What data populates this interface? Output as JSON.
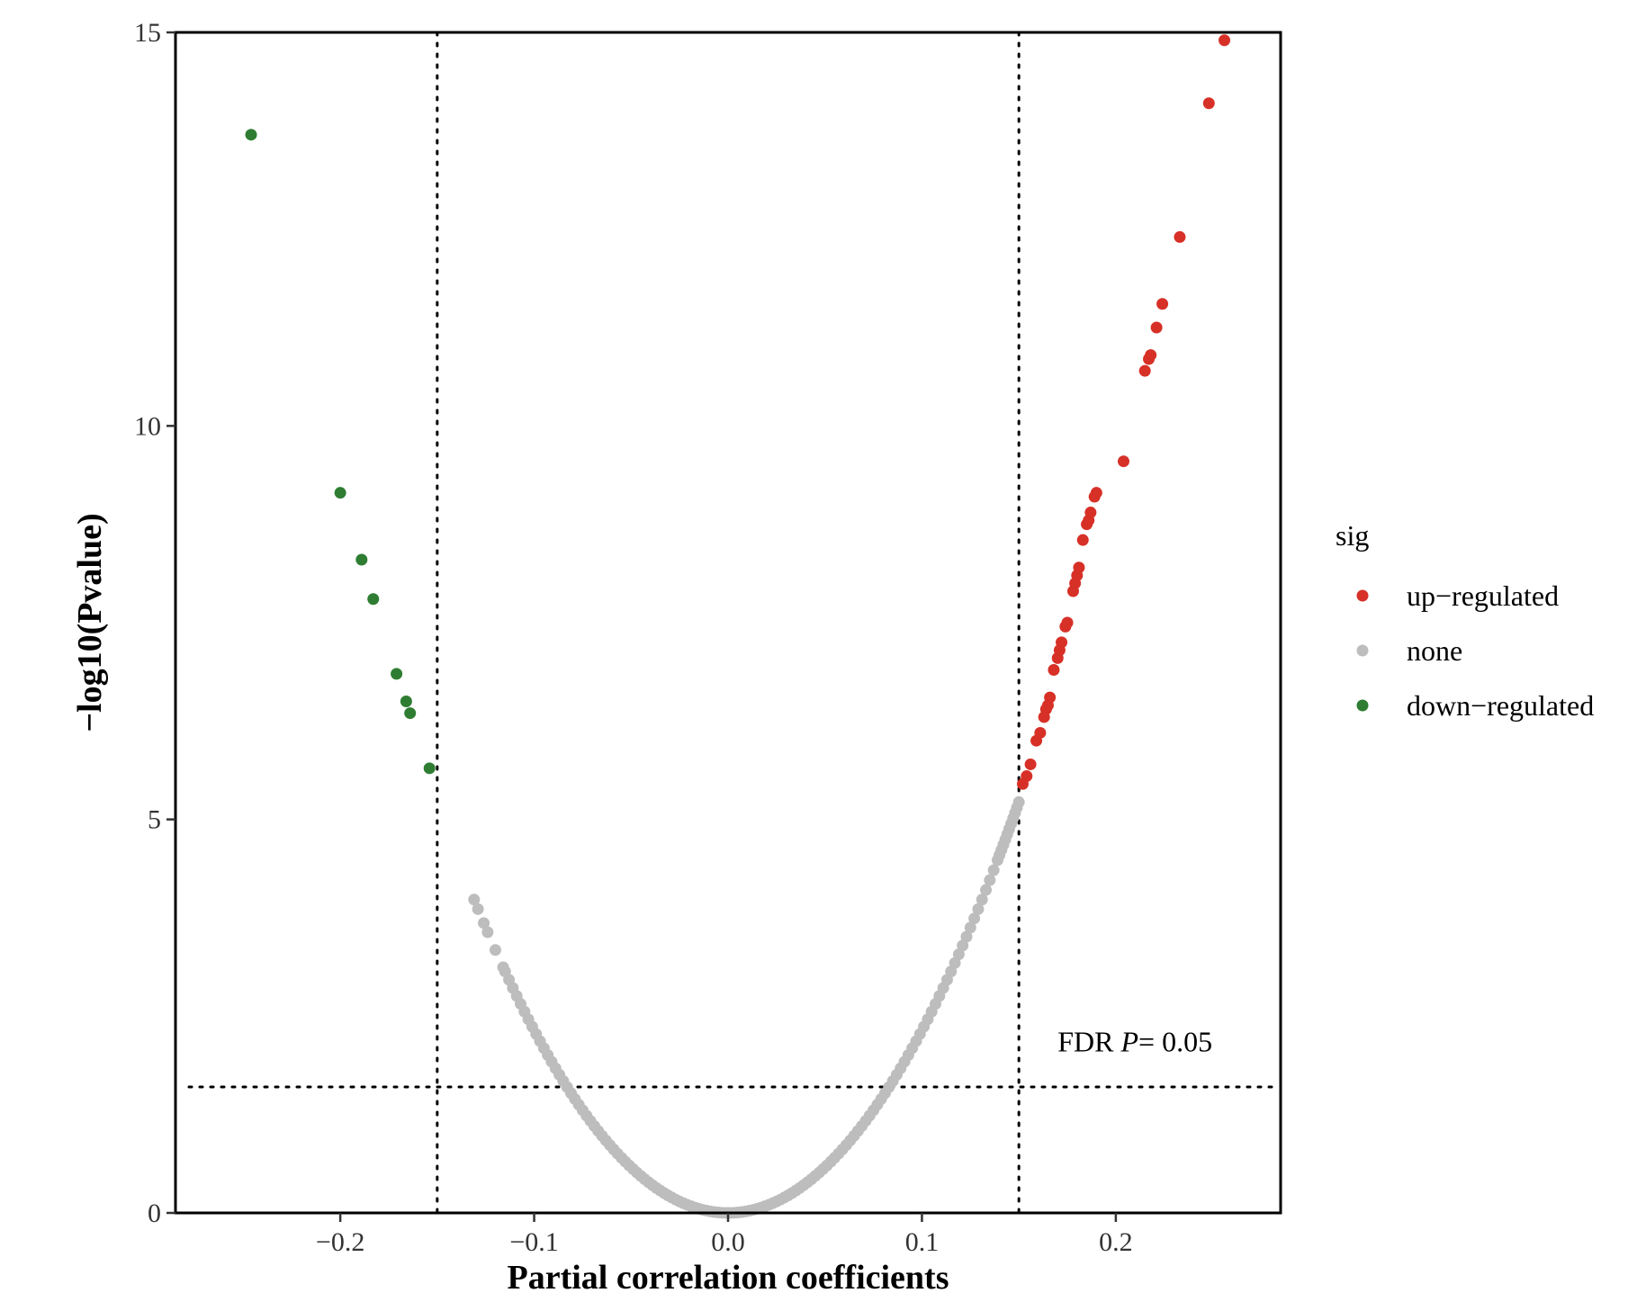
{
  "chart_data": {
    "type": "scatter",
    "title": "",
    "xlabel": "Partial correlation coefficients",
    "ylabel": "−log10(Pvalue)",
    "xlim": [
      -0.285,
      0.285
    ],
    "ylim": [
      0,
      15
    ],
    "x_ticks": [
      -0.2,
      -0.1,
      0.0,
      0.1,
      0.2
    ],
    "x_tick_labels": [
      "−0.2",
      "−0.1",
      "0.0",
      "0.1",
      "0.2"
    ],
    "y_ticks": [
      0,
      5,
      10,
      15
    ],
    "y_tick_labels": [
      "0",
      "5",
      "10",
      "15"
    ],
    "grid": false,
    "legend": {
      "title": "sig",
      "position": "right",
      "entries": [
        {
          "key": "up",
          "label": "up−regulated",
          "color": "#d73027"
        },
        {
          "key": "none",
          "label": "none",
          "color": "#bdbdbd"
        },
        {
          "key": "down",
          "label": "down−regulated",
          "color": "#2e7d32"
        }
      ]
    },
    "thresholds": {
      "vertical_x": [
        -0.15,
        0.15
      ],
      "horizontal_y": 1.6
    },
    "annotation": {
      "prefix": "FDR ",
      "italic": "P",
      "suffix": "= 0.05",
      "x": 0.17,
      "y": 2.05
    },
    "curve_fit": {
      "note_unused": ""
    },
    "series": [
      {
        "key": "up",
        "points": [
          [
            0.152,
            5.45
          ],
          [
            0.154,
            5.55
          ],
          [
            0.156,
            5.7
          ],
          [
            0.159,
            6.0
          ],
          [
            0.161,
            6.1
          ],
          [
            0.163,
            6.3
          ],
          [
            0.164,
            6.4
          ],
          [
            0.165,
            6.45
          ],
          [
            0.166,
            6.55
          ],
          [
            0.168,
            6.9
          ],
          [
            0.17,
            7.05
          ],
          [
            0.171,
            7.15
          ],
          [
            0.172,
            7.25
          ],
          [
            0.174,
            7.45
          ],
          [
            0.175,
            7.5
          ],
          [
            0.178,
            7.9
          ],
          [
            0.179,
            8.0
          ],
          [
            0.18,
            8.1
          ],
          [
            0.181,
            8.2
          ],
          [
            0.183,
            8.55
          ],
          [
            0.185,
            8.75
          ],
          [
            0.186,
            8.8
          ],
          [
            0.187,
            8.9
          ],
          [
            0.189,
            9.1
          ],
          [
            0.19,
            9.15
          ],
          [
            0.204,
            9.55
          ],
          [
            0.215,
            10.7
          ],
          [
            0.217,
            10.85
          ],
          [
            0.218,
            10.9
          ],
          [
            0.221,
            11.25
          ],
          [
            0.224,
            11.55
          ],
          [
            0.233,
            12.4
          ],
          [
            0.248,
            14.1
          ],
          [
            0.256,
            14.9
          ]
        ]
      },
      {
        "key": "down",
        "points": [
          [
            -0.246,
            13.7
          ],
          [
            -0.2,
            9.15
          ],
          [
            -0.189,
            8.3
          ],
          [
            -0.183,
            7.8
          ],
          [
            -0.171,
            6.85
          ],
          [
            -0.166,
            6.5
          ],
          [
            -0.164,
            6.35
          ],
          [
            -0.154,
            5.65
          ]
        ]
      },
      {
        "key": "none",
        "curve": {
          "k": 232.0,
          "power": 2.0
        },
        "x_points": [
          -0.131,
          -0.129,
          -0.126,
          -0.124,
          -0.12,
          -0.116,
          -0.115,
          -0.113,
          -0.111,
          -0.109,
          -0.107,
          -0.105,
          -0.103,
          -0.101,
          -0.099,
          -0.097,
          -0.095,
          -0.093,
          -0.091,
          -0.089,
          -0.087,
          -0.085,
          -0.083,
          -0.081,
          -0.079,
          -0.077,
          -0.075,
          -0.073,
          -0.071,
          -0.069,
          -0.067,
          -0.065,
          -0.063,
          -0.061,
          -0.059,
          -0.057,
          -0.055,
          -0.053,
          -0.051,
          -0.049,
          -0.047,
          -0.045,
          -0.043,
          -0.041,
          -0.039,
          -0.037,
          -0.035,
          -0.033,
          -0.031,
          -0.029,
          -0.027,
          -0.025,
          -0.023,
          -0.021,
          -0.019,
          -0.017,
          -0.015,
          -0.013,
          -0.011,
          -0.009,
          -0.007,
          -0.005,
          -0.003,
          -0.001,
          0.0,
          0.001,
          0.003,
          0.005,
          0.007,
          0.009,
          0.011,
          0.013,
          0.015,
          0.017,
          0.019,
          0.021,
          0.023,
          0.025,
          0.027,
          0.029,
          0.031,
          0.033,
          0.035,
          0.037,
          0.039,
          0.041,
          0.043,
          0.045,
          0.047,
          0.049,
          0.051,
          0.053,
          0.055,
          0.057,
          0.059,
          0.061,
          0.063,
          0.065,
          0.067,
          0.069,
          0.071,
          0.073,
          0.075,
          0.077,
          0.079,
          0.081,
          0.083,
          0.085,
          0.087,
          0.089,
          0.091,
          0.093,
          0.095,
          0.097,
          0.099,
          0.101,
          0.103,
          0.105,
          0.107,
          0.109,
          0.111,
          0.113,
          0.115,
          0.117,
          0.119,
          0.121,
          0.123,
          0.125,
          0.127,
          0.129,
          0.131,
          0.133,
          0.135,
          0.137,
          0.139,
          0.14,
          0.141,
          0.142,
          0.143,
          0.144,
          0.145,
          0.146,
          0.147,
          0.148,
          0.149,
          0.15
        ]
      }
    ]
  }
}
